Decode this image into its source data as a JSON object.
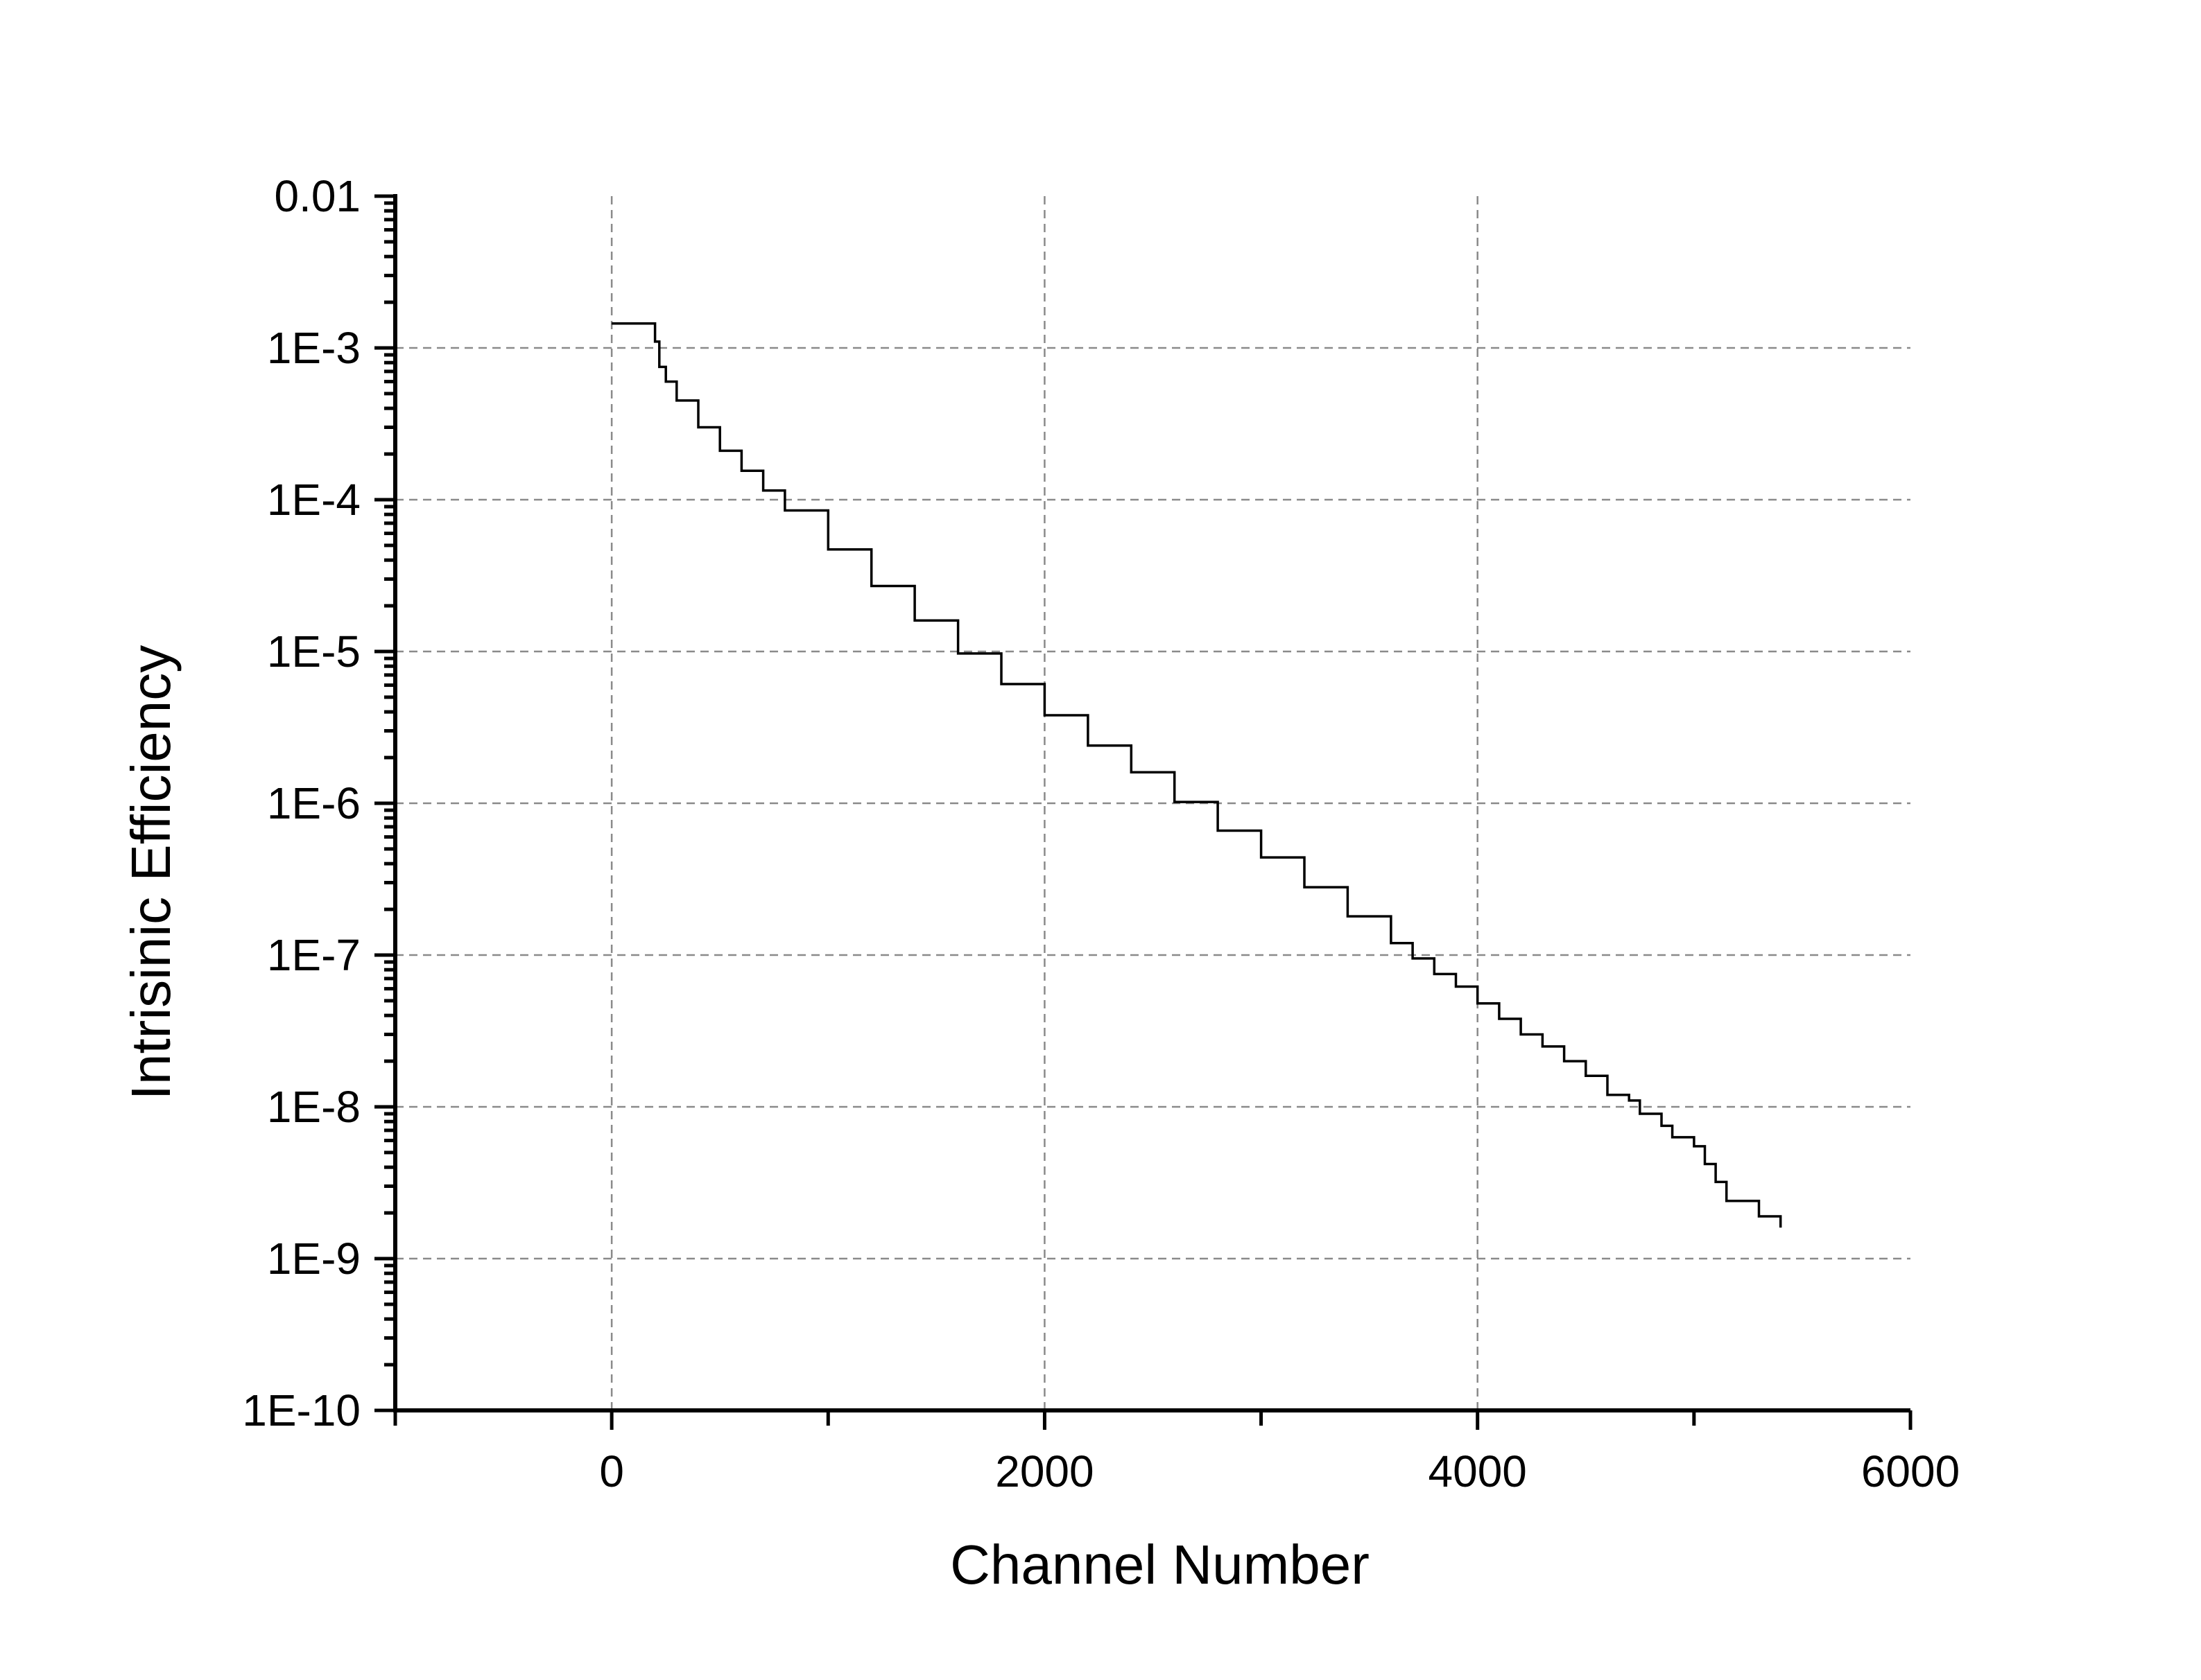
{
  "chart_data": {
    "type": "line",
    "xlabel": "Channel Number",
    "ylabel": "Intrisinic Efficiency",
    "xlim": [
      -1000,
      6000
    ],
    "ylim": [
      1e-10,
      0.01
    ],
    "yscale": "log",
    "grid": true,
    "x_ticks": [
      0,
      2000,
      4000,
      6000
    ],
    "x_tick_labels": [
      "0",
      "2000",
      "4000",
      "6000"
    ],
    "y_ticks": [
      0.01,
      0.001,
      0.0001,
      1e-05,
      1e-06,
      1e-07,
      1e-08,
      1e-09,
      1e-10
    ],
    "y_tick_labels": [
      "0.01",
      "1E-3",
      "1E-4",
      "1E-5",
      "1E-6",
      "1E-7",
      "1E-8",
      "1E-9",
      "1E-10"
    ],
    "series": [
      {
        "x": [
          0,
          180,
          200,
          220,
          250,
          300,
          400,
          500,
          600,
          700,
          800,
          1000,
          1200,
          1400,
          1600,
          1800,
          2000,
          2200,
          2400,
          2600,
          2800,
          3000,
          3200,
          3400,
          3600,
          3700,
          3800,
          3900,
          4000,
          4100,
          4200,
          4300,
          4400,
          4500,
          4600,
          4700,
          4750,
          4850,
          4900,
          5000,
          5050,
          5100,
          5150,
          5300,
          5400
        ],
        "y": [
          0.00145,
          0.00145,
          0.0011,
          0.00075,
          0.0006,
          0.00045,
          0.0003,
          0.00021,
          0.000155,
          0.000115,
          8.5e-05,
          4.7e-05,
          2.7e-05,
          1.6e-05,
          9.7e-06,
          6.1e-06,
          3.8e-06,
          2.4e-06,
          1.6e-06,
          1.02e-06,
          6.6e-07,
          4.4e-07,
          2.8e-07,
          1.8e-07,
          1.2e-07,
          9.5e-08,
          7.5e-08,
          6.2e-08,
          4.8e-08,
          3.8e-08,
          3e-08,
          2.5e-08,
          2e-08,
          1.6e-08,
          1.2e-08,
          1.1e-08,
          9e-09,
          7.5e-09,
          6.3e-09,
          5.5e-09,
          4.2e-09,
          3.2e-09,
          2.4e-09,
          1.9e-09,
          1.6e-09
        ]
      }
    ]
  }
}
